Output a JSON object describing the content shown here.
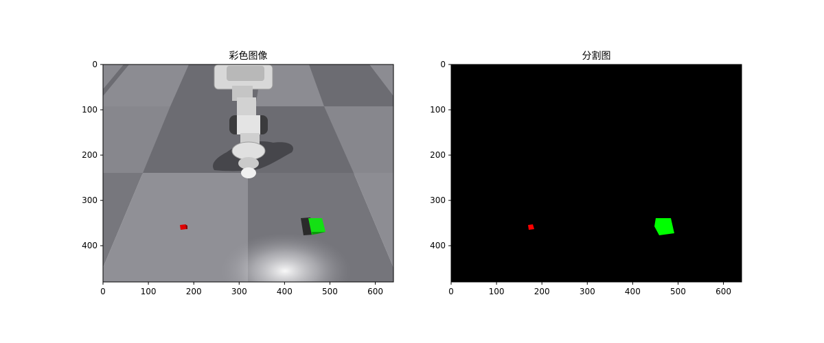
{
  "chart_data": [
    {
      "type": "image",
      "title": "彩色图像",
      "xlim": [
        0,
        640
      ],
      "ylim": [
        480,
        0
      ],
      "xticks": [
        0,
        100,
        200,
        300,
        400,
        500,
        600
      ],
      "yticks": [
        0,
        100,
        200,
        300,
        400
      ],
      "image_size": [
        640,
        480
      ],
      "objects": [
        {
          "kind": "cube",
          "color": "#ff0000",
          "x": 177,
          "y": 358
        },
        {
          "kind": "cube",
          "color": "#00ee00",
          "x": 462,
          "y": 355
        },
        {
          "kind": "robot-arm",
          "color": "#e8e8e8",
          "x": 355,
          "y": 130
        }
      ]
    },
    {
      "type": "image",
      "title": "分割图",
      "xlim": [
        0,
        640
      ],
      "ylim": [
        480,
        0
      ],
      "xticks": [
        0,
        100,
        200,
        300,
        400,
        500,
        600
      ],
      "yticks": [
        0,
        100,
        200,
        300,
        400
      ],
      "image_size": [
        640,
        480
      ],
      "background": "#000000",
      "objects": [
        {
          "kind": "mask",
          "color": "#ff0000",
          "x": 177,
          "y": 358
        },
        {
          "kind": "mask",
          "color": "#00ff00",
          "x": 468,
          "y": 357
        }
      ]
    }
  ]
}
